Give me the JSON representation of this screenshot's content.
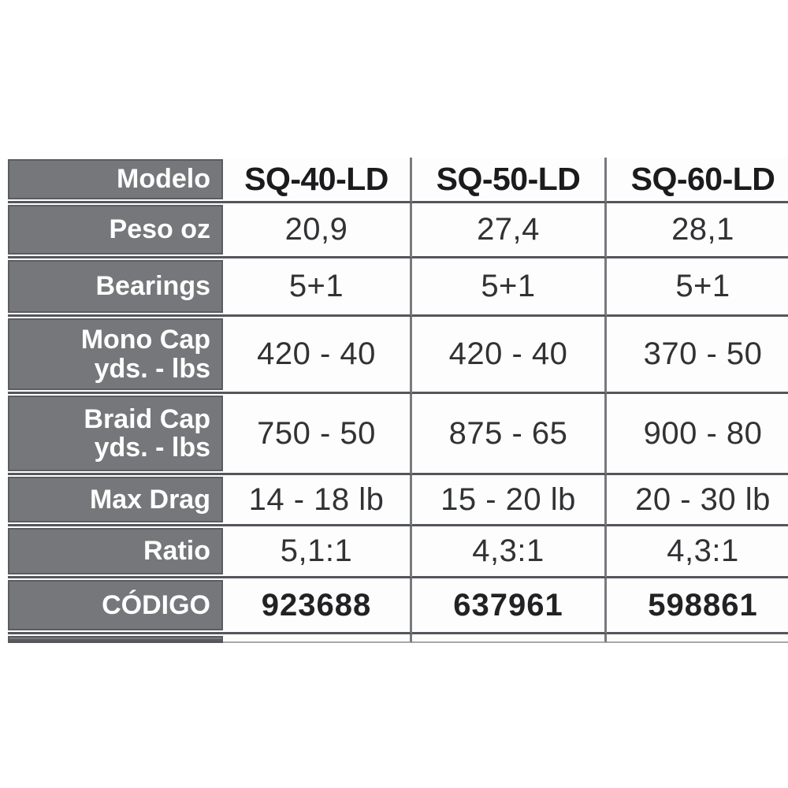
{
  "table": {
    "header": {
      "label": "Modelo",
      "models": [
        "SQ-40-LD",
        "SQ-50-LD",
        "SQ-60-LD"
      ]
    },
    "rows": [
      {
        "label": "Peso oz",
        "values": [
          "20,9",
          "27,4",
          "28,1"
        ]
      },
      {
        "label": "Bearings",
        "values": [
          "5+1",
          "5+1",
          "5+1"
        ]
      },
      {
        "label": "Mono Cap\nyds. - lbs",
        "values": [
          "420 - 40",
          "420 - 40",
          "370 - 50"
        ]
      },
      {
        "label": "Braid Cap\nyds. - lbs",
        "values": [
          "750 - 50",
          "875 - 65",
          "900 - 80"
        ]
      },
      {
        "label": "Max Drag",
        "values": [
          "14 - 18 lb",
          "15 - 20 lb",
          "20 - 30 lb"
        ]
      },
      {
        "label": "Ratio",
        "values": [
          "5,1:1",
          "4,3:1",
          "4,3:1"
        ]
      },
      {
        "label": "CÓDIGO",
        "values": [
          "923688",
          "637961",
          "598861"
        ],
        "bold": true
      }
    ],
    "colors": {
      "label_background": "#76777a",
      "label_border": "#5b5c5f",
      "grid_line_horizontal": "#55565b",
      "grid_line_vertical": "#797a7d",
      "label_text": "#ffffff",
      "value_text": "#313234",
      "page_background": "#ffffff"
    }
  }
}
